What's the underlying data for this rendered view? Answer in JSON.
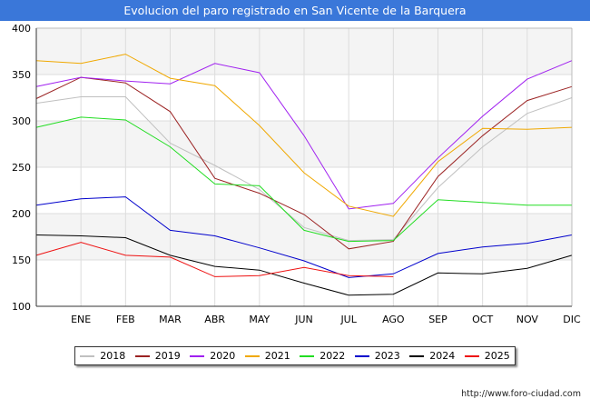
{
  "header": {
    "title": "Evolucion del paro registrado en San Vicente de la Barquera"
  },
  "footer": {
    "source": "http://www.foro-ciudad.com"
  },
  "chart_data": {
    "type": "line",
    "title": "Evolucion del paro registrado en San Vicente de la Barquera",
    "xlabel": "",
    "ylabel": "",
    "categories": [
      "",
      "ENE",
      "FEB",
      "MAR",
      "ABR",
      "MAY",
      "JUN",
      "JUL",
      "AGO",
      "SEP",
      "OCT",
      "NOV",
      "DIC"
    ],
    "ylim": [
      100,
      400
    ],
    "yticks": [
      100,
      150,
      200,
      250,
      300,
      350,
      400
    ],
    "grid": true,
    "legend_position": "bottom",
    "series": [
      {
        "name": "2018",
        "color": "#c0c0c0",
        "values": [
          319,
          326,
          326,
          276,
          252,
          226,
          185,
          171,
          172,
          228,
          272,
          308,
          325
        ]
      },
      {
        "name": "2019",
        "color": "#9b2222",
        "values": [
          324,
          347,
          341,
          310,
          238,
          222,
          199,
          162,
          170,
          240,
          284,
          322,
          337
        ]
      },
      {
        "name": "2020",
        "color": "#a020f0",
        "values": [
          337,
          347,
          343,
          340,
          362,
          352,
          284,
          205,
          211,
          260,
          305,
          345,
          365
        ]
      },
      {
        "name": "2021",
        "color": "#f0a800",
        "values": [
          365,
          362,
          372,
          346,
          338,
          295,
          244,
          208,
          197,
          256,
          292,
          291,
          293
        ]
      },
      {
        "name": "2022",
        "color": "#22dd22",
        "values": [
          293,
          304,
          301,
          272,
          232,
          230,
          182,
          170,
          171,
          215,
          212,
          209,
          209
        ]
      },
      {
        "name": "2023",
        "color": "#0000cc",
        "values": [
          209,
          216,
          218,
          182,
          176,
          163,
          149,
          131,
          135,
          157,
          164,
          168,
          177
        ]
      },
      {
        "name": "2024",
        "color": "#000000",
        "values": [
          177,
          176,
          174,
          155,
          143,
          139,
          125,
          112,
          113,
          136,
          135,
          141,
          155
        ]
      },
      {
        "name": "2025",
        "color": "#ee1111",
        "values": [
          155,
          169,
          155,
          153,
          132,
          133,
          142,
          133,
          132,
          null,
          null,
          null,
          null
        ]
      }
    ]
  }
}
